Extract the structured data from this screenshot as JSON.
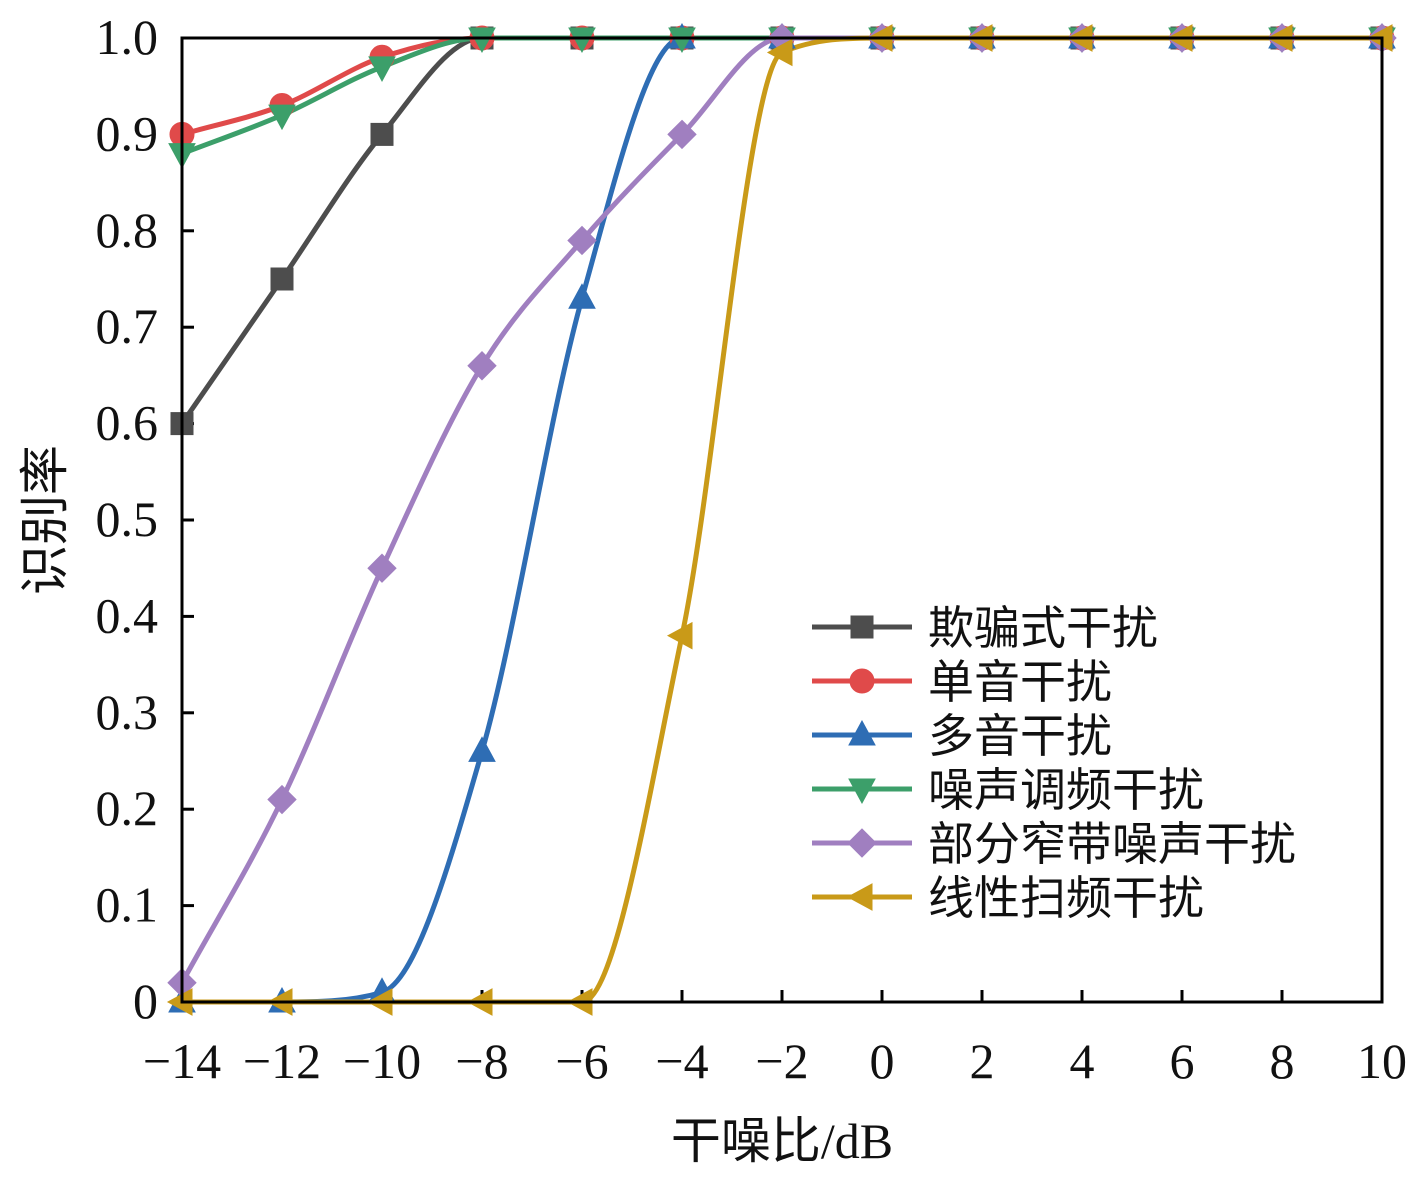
{
  "chart_data": {
    "type": "line",
    "xlabel": "干噪比/dB",
    "ylabel": "识别率",
    "xlim": [
      -14,
      10
    ],
    "ylim": [
      0,
      1
    ],
    "x_ticks": [
      -14,
      -12,
      -10,
      -8,
      -6,
      -4,
      -2,
      0,
      2,
      4,
      6,
      8,
      10
    ],
    "x_tick_labels": [
      "−14",
      "−12",
      "−10",
      "−8",
      "−6",
      "−4",
      "−2",
      "0",
      "2",
      "4",
      "6",
      "8",
      "10"
    ],
    "y_ticks": [
      0,
      0.1,
      0.2,
      0.3,
      0.4,
      0.5,
      0.6,
      0.7,
      0.8,
      0.9,
      1.0
    ],
    "y_tick_labels": [
      "0",
      "0.1",
      "0.2",
      "0.3",
      "0.4",
      "0.5",
      "0.6",
      "0.7",
      "0.8",
      "0.9",
      "1.0"
    ],
    "legend_position": "right",
    "x": [
      -14,
      -12,
      -10,
      -8,
      -6,
      -4,
      -2,
      0,
      2,
      4,
      6,
      8,
      10
    ],
    "series": [
      {
        "name": "欺骗式干扰",
        "color": "#4d4d4d",
        "marker": "square",
        "values": [
          0.6,
          0.75,
          0.9,
          1.0,
          1.0,
          1.0,
          1.0,
          1.0,
          1.0,
          1.0,
          1.0,
          1.0,
          1.0
        ]
      },
      {
        "name": "单音干扰",
        "color": "#e04a4a",
        "marker": "circle",
        "values": [
          0.9,
          0.93,
          0.98,
          1.0,
          1.0,
          1.0,
          1.0,
          1.0,
          1.0,
          1.0,
          1.0,
          1.0,
          1.0
        ]
      },
      {
        "name": "多音干扰",
        "color": "#2e6db4",
        "marker": "triangle-up",
        "values": [
          0.0,
          0.0,
          0.01,
          0.26,
          0.73,
          1.0,
          1.0,
          1.0,
          1.0,
          1.0,
          1.0,
          1.0,
          1.0
        ]
      },
      {
        "name": "噪声调频干扰",
        "color": "#3c9f6a",
        "marker": "triangle-down",
        "values": [
          0.88,
          0.92,
          0.97,
          1.0,
          1.0,
          1.0,
          1.0,
          1.0,
          1.0,
          1.0,
          1.0,
          1.0,
          1.0
        ]
      },
      {
        "name": "部分窄带噪声干扰",
        "color": "#a07fc0",
        "marker": "diamond",
        "values": [
          0.02,
          0.21,
          0.45,
          0.66,
          0.79,
          0.9,
          1.0,
          1.0,
          1.0,
          1.0,
          1.0,
          1.0,
          1.0
        ]
      },
      {
        "name": "线性扫频干扰",
        "color": "#c99a18",
        "marker": "triangle-left",
        "values": [
          0.0,
          0.0,
          0.0,
          0.0,
          0.0,
          0.38,
          0.985,
          1.0,
          1.0,
          1.0,
          1.0,
          1.0,
          1.0
        ]
      }
    ]
  }
}
